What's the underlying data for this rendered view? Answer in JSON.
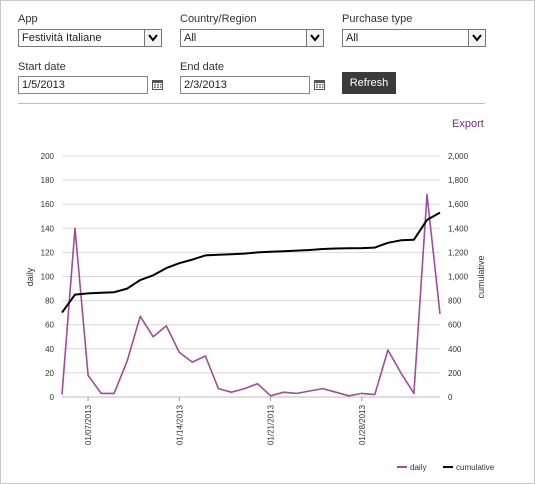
{
  "filters": {
    "app": {
      "label": "App",
      "value": "Festività Italiane"
    },
    "country": {
      "label": "Country/Region",
      "value": "All"
    },
    "purchase": {
      "label": "Purchase type",
      "value": "All"
    },
    "start": {
      "label": "Start date",
      "value": "1/5/2013"
    },
    "end": {
      "label": "End date",
      "value": "2/3/2013"
    },
    "refresh_label": "Refresh"
  },
  "export_label": "Export",
  "colors": {
    "daily": "#9b4f9b",
    "cumulative": "#000000",
    "accent": "#7a2a7a"
  },
  "chart_data": {
    "type": "line",
    "x": [
      "1/5/2013",
      "1/6/2013",
      "1/7/2013",
      "1/8/2013",
      "1/9/2013",
      "1/10/2013",
      "1/11/2013",
      "1/12/2013",
      "1/13/2013",
      "1/14/2013",
      "1/15/2013",
      "1/16/2013",
      "1/17/2013",
      "1/18/2013",
      "1/19/2013",
      "1/20/2013",
      "1/21/2013",
      "1/22/2013",
      "1/23/2013",
      "1/24/2013",
      "1/25/2013",
      "1/26/2013",
      "1/27/2013",
      "1/28/2013",
      "1/29/2013",
      "1/30/2013",
      "1/31/2013",
      "2/1/2013",
      "2/2/2013",
      "2/3/2013"
    ],
    "x_tick_labels": [
      "01/07/2013",
      "01/14/2013",
      "01/21/2013",
      "01/28/2013"
    ],
    "series": [
      {
        "name": "daily",
        "axis": "left",
        "values": [
          2,
          140,
          18,
          3,
          3,
          30,
          67,
          50,
          59,
          37,
          29,
          34,
          7,
          4,
          7,
          11,
          1,
          4,
          3,
          5,
          7,
          4,
          1,
          3,
          2,
          39,
          20,
          3,
          168,
          69
        ]
      },
      {
        "name": "cumulative",
        "axis": "right",
        "values": [
          700,
          850,
          860,
          865,
          870,
          900,
          970,
          1010,
          1070,
          1110,
          1140,
          1175,
          1180,
          1185,
          1190,
          1200,
          1205,
          1210,
          1215,
          1220,
          1228,
          1232,
          1234,
          1236,
          1240,
          1280,
          1300,
          1305,
          1470,
          1530
        ]
      }
    ],
    "ylabel": "daily",
    "y2label": "cumulative",
    "ylim": [
      0,
      200
    ],
    "y2lim": [
      0,
      2000
    ],
    "y_ticks": [
      "0",
      "20",
      "40",
      "60",
      "80",
      "100",
      "120",
      "140",
      "160",
      "180",
      "200"
    ],
    "y2_ticks": [
      "0",
      "200",
      "400",
      "600",
      "800",
      "1,000",
      "1,200",
      "1,400",
      "1,600",
      "1,800",
      "2,000"
    ],
    "grid": true,
    "legend_position": "bottom-right"
  }
}
